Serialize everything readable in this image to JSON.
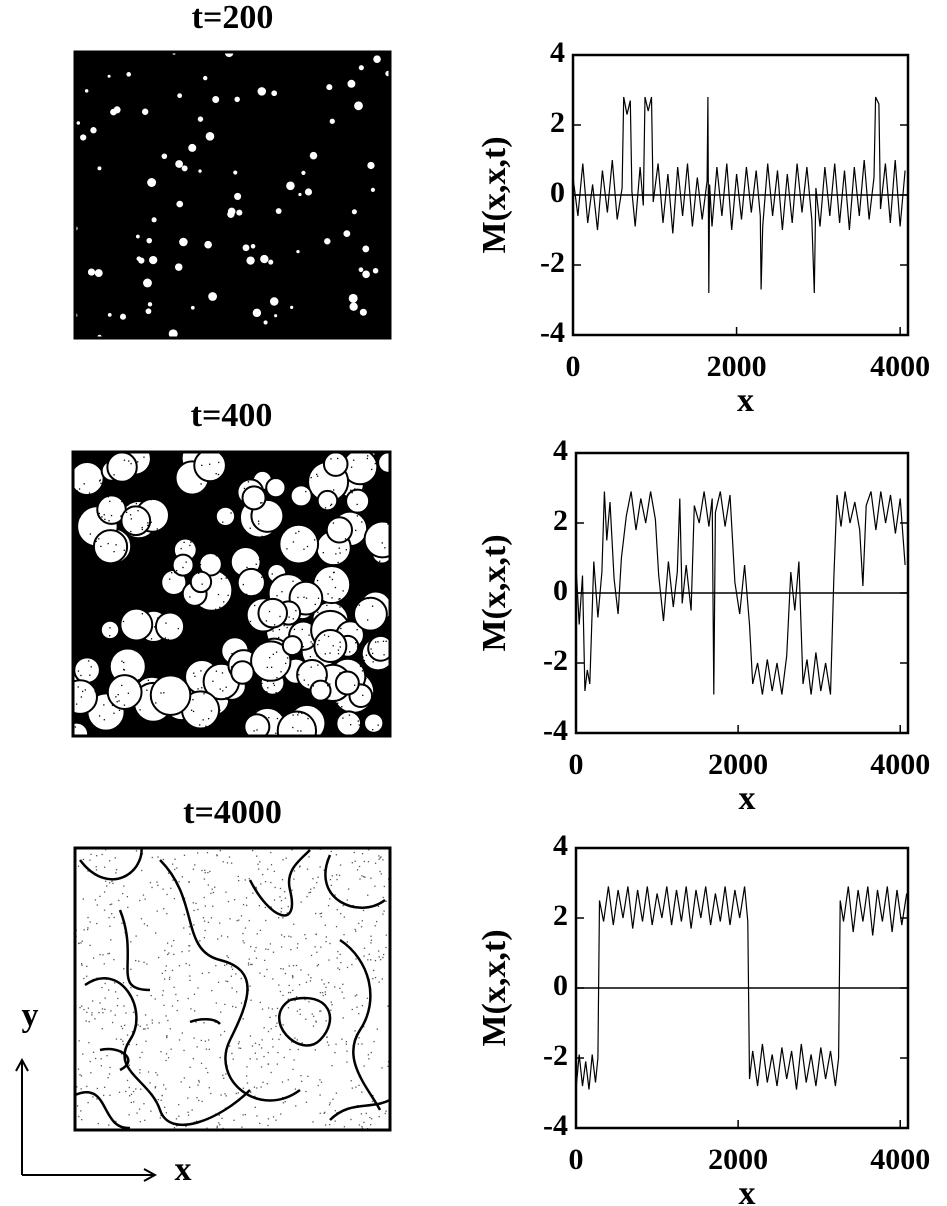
{
  "snapshots": [
    {
      "title": "t=200"
    },
    {
      "title": "t=400"
    },
    {
      "title": "t=4000"
    }
  ],
  "axes_indicator": {
    "x": "x",
    "y": "y"
  },
  "chart_data": [
    {
      "type": "line",
      "x_label": "x",
      "y_label": "M(x,x,t)",
      "xlim": [
        0,
        4096
      ],
      "ylim": [
        -4,
        4
      ],
      "xticks": [
        0,
        2000,
        4000
      ],
      "yticks": [
        -4,
        -2,
        0,
        2,
        4
      ],
      "zero_line": true,
      "series": [
        {
          "color": "#000000",
          "x": [
            0,
            60,
            120,
            180,
            240,
            300,
            360,
            420,
            480,
            540,
            600,
            620,
            660,
            700,
            720,
            760,
            820,
            860,
            880,
            920,
            960,
            980,
            1040,
            1100,
            1160,
            1220,
            1280,
            1340,
            1400,
            1460,
            1520,
            1580,
            1640,
            1650,
            1660,
            1670,
            1700,
            1760,
            1820,
            1880,
            1940,
            2000,
            2060,
            2120,
            2180,
            2240,
            2290,
            2300,
            2320,
            2380,
            2440,
            2500,
            2560,
            2620,
            2680,
            2740,
            2800,
            2860,
            2920,
            2950,
            2970,
            3020,
            3080,
            3140,
            3200,
            3260,
            3320,
            3380,
            3440,
            3500,
            3560,
            3620,
            3680,
            3700,
            3740,
            3760,
            3820,
            3880,
            3940,
            4000,
            4060
          ],
          "values": [
            0.5,
            -0.6,
            0.9,
            -0.8,
            0.3,
            -1.0,
            0.7,
            -0.5,
            1.0,
            -0.7,
            0.2,
            2.8,
            2.3,
            2.7,
            0.1,
            -0.9,
            0.8,
            -0.3,
            2.8,
            2.4,
            2.8,
            -0.2,
            0.9,
            -0.8,
            0.6,
            -1.1,
            0.8,
            -0.6,
            0.9,
            -0.9,
            0.5,
            -0.7,
            0.4,
            2.8,
            -2.8,
            0.3,
            -0.9,
            0.8,
            -0.6,
            0.9,
            -1.0,
            0.6,
            -0.7,
            0.8,
            -0.5,
            0.7,
            -0.6,
            -2.7,
            -0.9,
            0.9,
            -0.6,
            0.7,
            -1.0,
            0.6,
            -0.8,
            0.9,
            -0.5,
            0.8,
            -0.7,
            -2.8,
            0.2,
            -0.9,
            0.8,
            -0.6,
            0.9,
            -0.8,
            0.7,
            -1.0,
            0.8,
            -0.6,
            1.0,
            -0.7,
            0.5,
            2.8,
            2.6,
            -0.4,
            0.9,
            -0.8,
            1.0,
            -0.9,
            0.7
          ]
        }
      ]
    },
    {
      "type": "line",
      "x_label": "x",
      "y_label": "M(x,x,t)",
      "xlim": [
        0,
        4096
      ],
      "ylim": [
        -4,
        4
      ],
      "xticks": [
        0,
        2000,
        4000
      ],
      "yticks": [
        -4,
        -2,
        0,
        2,
        4
      ],
      "zero_line": true,
      "series": [
        {
          "color": "#000000",
          "x": [
            0,
            40,
            80,
            110,
            140,
            170,
            220,
            270,
            320,
            350,
            380,
            420,
            470,
            520,
            560,
            620,
            680,
            740,
            800,
            860,
            920,
            980,
            1020,
            1080,
            1140,
            1200,
            1250,
            1280,
            1310,
            1360,
            1420,
            1460,
            1520,
            1580,
            1640,
            1680,
            1700,
            1720,
            1780,
            1840,
            1900,
            1960,
            2020,
            2080,
            2140,
            2180,
            2240,
            2300,
            2360,
            2420,
            2480,
            2540,
            2600,
            2650,
            2700,
            2750,
            2800,
            2850,
            2900,
            2960,
            3020,
            3080,
            3140,
            3180,
            3220,
            3270,
            3320,
            3380,
            3440,
            3500,
            3540,
            3580,
            3640,
            3700,
            3760,
            3820,
            3880,
            3940,
            4000,
            4060
          ],
          "values": [
            0.8,
            -0.9,
            0.5,
            -2.8,
            -2.2,
            -2.6,
            0.9,
            -0.7,
            0.6,
            2.9,
            1.5,
            2.6,
            0.4,
            -0.6,
            1.0,
            2.2,
            2.9,
            1.8,
            2.7,
            2.0,
            2.9,
            2.1,
            0.5,
            -0.8,
            0.9,
            -0.4,
            0.6,
            2.7,
            -0.3,
            0.8,
            -0.5,
            2.5,
            2.0,
            2.9,
            1.9,
            2.7,
            -2.9,
            2.3,
            2.9,
            1.9,
            2.8,
            0.3,
            -0.6,
            0.8,
            -0.9,
            -2.6,
            -2.0,
            -2.9,
            -1.9,
            -2.8,
            -2.0,
            -2.9,
            -1.8,
            0.6,
            -0.5,
            0.9,
            -2.6,
            -1.9,
            -2.9,
            -1.7,
            -2.8,
            -2.0,
            -2.9,
            0.4,
            2.8,
            1.9,
            2.9,
            2.0,
            2.6,
            1.8,
            0.2,
            2.5,
            2.9,
            1.8,
            2.9,
            2.0,
            2.8,
            1.7,
            2.7,
            0.8
          ]
        }
      ]
    },
    {
      "type": "line",
      "x_label": "x",
      "y_label": "M(x,x,t)",
      "xlim": [
        0,
        4096
      ],
      "ylim": [
        -4,
        4
      ],
      "xticks": [
        0,
        2000,
        4000
      ],
      "yticks": [
        -4,
        -2,
        0,
        2,
        4
      ],
      "zero_line": true,
      "series": [
        {
          "color": "#000000",
          "x": [
            0,
            40,
            80,
            120,
            160,
            200,
            240,
            270,
            290,
            340,
            400,
            460,
            520,
            580,
            640,
            700,
            760,
            820,
            880,
            940,
            1000,
            1060,
            1120,
            1180,
            1240,
            1300,
            1360,
            1420,
            1480,
            1540,
            1600,
            1660,
            1720,
            1780,
            1840,
            1900,
            1960,
            2020,
            2080,
            2120,
            2140,
            2180,
            2240,
            2300,
            2360,
            2420,
            2480,
            2540,
            2600,
            2660,
            2720,
            2780,
            2840,
            2900,
            2960,
            3020,
            3080,
            3140,
            3200,
            3240,
            3260,
            3300,
            3360,
            3420,
            3480,
            3540,
            3600,
            3660,
            3720,
            3780,
            3840,
            3900,
            3960,
            4020,
            4080
          ],
          "values": [
            -2.9,
            -1.9,
            -2.8,
            -2.1,
            -2.9,
            -1.9,
            -2.7,
            -2.0,
            2.5,
            1.9,
            2.9,
            1.8,
            2.8,
            2.0,
            2.9,
            1.7,
            2.8,
            1.9,
            2.9,
            1.8,
            2.7,
            2.0,
            2.9,
            1.8,
            2.8,
            1.9,
            2.9,
            1.7,
            2.8,
            2.0,
            2.9,
            1.8,
            2.7,
            1.9,
            2.9,
            1.8,
            2.8,
            2.0,
            2.9,
            1.9,
            -2.6,
            -1.8,
            -2.8,
            -1.6,
            -2.7,
            -1.9,
            -2.8,
            -1.7,
            -2.6,
            -1.8,
            -2.9,
            -1.6,
            -2.7,
            -1.9,
            -2.8,
            -1.7,
            -2.6,
            -1.8,
            -2.8,
            -2.0,
            2.5,
            1.9,
            2.9,
            1.6,
            2.8,
            1.9,
            2.9,
            1.5,
            2.8,
            1.9,
            2.9,
            1.6,
            2.8,
            1.8,
            2.7
          ]
        }
      ]
    }
  ]
}
